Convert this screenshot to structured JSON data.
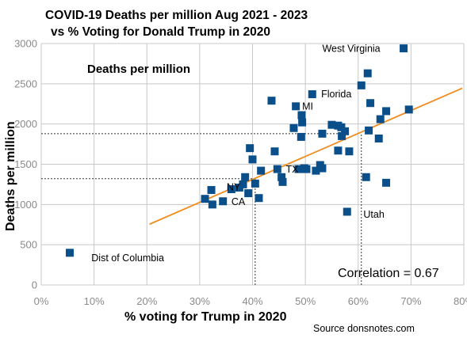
{
  "chart_data": {
    "type": "scatter",
    "title_line1": "COVID-19 Deaths per million Aug 2021 - 2023",
    "title_line2": "vs % Voting for Donald Trump in 2020",
    "inner_label": "Deaths per million",
    "xlabel": "% voting for Trump in 2020",
    "ylabel": "Deaths per million",
    "xlim": [
      0,
      80
    ],
    "ylim": [
      0,
      3000
    ],
    "x_ticks": [
      0,
      10,
      20,
      30,
      40,
      50,
      60,
      70,
      80
    ],
    "x_tick_labels": [
      "0%",
      "10%",
      "20%",
      "30%",
      "40%",
      "50%",
      "60%",
      "70%",
      "80%"
    ],
    "y_ticks": [
      0,
      500,
      1000,
      1500,
      2000,
      2500,
      3000
    ],
    "y_tick_labels": [
      "0",
      "500",
      "1000",
      "1500",
      "2000",
      "2500",
      "3000"
    ],
    "grid": true,
    "marker_color": "#0b4f8a",
    "trend_color": "#f08c1e",
    "trendline": {
      "x": [
        20.5,
        79.7
      ],
      "y": [
        755,
        2445
      ]
    },
    "points": [
      {
        "x": 5.4,
        "y": 400
      },
      {
        "x": 31.0,
        "y": 1070
      },
      {
        "x": 32.2,
        "y": 1180
      },
      {
        "x": 32.4,
        "y": 1000
      },
      {
        "x": 34.4,
        "y": 1040
      },
      {
        "x": 36.0,
        "y": 1190
      },
      {
        "x": 37.5,
        "y": 1210
      },
      {
        "x": 38.2,
        "y": 1250
      },
      {
        "x": 38.6,
        "y": 1340
      },
      {
        "x": 39.2,
        "y": 1140
      },
      {
        "x": 39.5,
        "y": 1700
      },
      {
        "x": 40.0,
        "y": 1560
      },
      {
        "x": 40.5,
        "y": 1260
      },
      {
        "x": 41.2,
        "y": 1080
      },
      {
        "x": 41.6,
        "y": 1420
      },
      {
        "x": 43.6,
        "y": 2290
      },
      {
        "x": 44.2,
        "y": 1660
      },
      {
        "x": 44.7,
        "y": 1440
      },
      {
        "x": 45.5,
        "y": 1340
      },
      {
        "x": 45.7,
        "y": 1280
      },
      {
        "x": 47.8,
        "y": 1950
      },
      {
        "x": 48.2,
        "y": 2220
      },
      {
        "x": 48.7,
        "y": 1440
      },
      {
        "x": 49.2,
        "y": 1840
      },
      {
        "x": 49.3,
        "y": 2110
      },
      {
        "x": 49.4,
        "y": 2020
      },
      {
        "x": 49.8,
        "y": 1450
      },
      {
        "x": 50.2,
        "y": 1440
      },
      {
        "x": 51.3,
        "y": 2370
      },
      {
        "x": 52.0,
        "y": 1420
      },
      {
        "x": 52.8,
        "y": 1490
      },
      {
        "x": 53.2,
        "y": 1450
      },
      {
        "x": 53.2,
        "y": 1880
      },
      {
        "x": 55.0,
        "y": 1990
      },
      {
        "x": 56.2,
        "y": 1980
      },
      {
        "x": 56.2,
        "y": 1670
      },
      {
        "x": 56.8,
        "y": 1960
      },
      {
        "x": 56.9,
        "y": 1850
      },
      {
        "x": 57.5,
        "y": 1910
      },
      {
        "x": 57.9,
        "y": 910
      },
      {
        "x": 58.3,
        "y": 1660
      },
      {
        "x": 60.6,
        "y": 2480
      },
      {
        "x": 61.5,
        "y": 1340
      },
      {
        "x": 61.8,
        "y": 2630
      },
      {
        "x": 62.0,
        "y": 1920
      },
      {
        "x": 62.3,
        "y": 2260
      },
      {
        "x": 63.9,
        "y": 1820
      },
      {
        "x": 64.2,
        "y": 2060
      },
      {
        "x": 65.3,
        "y": 2160
      },
      {
        "x": 65.3,
        "y": 1270
      },
      {
        "x": 68.6,
        "y": 2940
      },
      {
        "x": 69.6,
        "y": 2180
      }
    ],
    "annotations": [
      {
        "text": "West Virginia",
        "x": 53.2,
        "y": 2940
      },
      {
        "text": "Florida",
        "x": 53.0,
        "y": 2375
      },
      {
        "text": "MI",
        "x": 49.4,
        "y": 2225
      },
      {
        "text": "TX",
        "x": 46.3,
        "y": 1440
      },
      {
        "text": "NY",
        "x": 35.1,
        "y": 1220
      },
      {
        "text": "CA",
        "x": 36.0,
        "y": 1040
      },
      {
        "text": "Utah",
        "x": 61.0,
        "y": 880
      },
      {
        "text": "Dist of Columbia",
        "x": 9.5,
        "y": 340
      }
    ],
    "reference_lines": [
      {
        "dir": "h",
        "y": 1880,
        "x_from": 0,
        "x_to": 57.5
      },
      {
        "dir": "h",
        "y": 1320,
        "x_from": 0,
        "x_to": 40.5
      },
      {
        "dir": "v",
        "x": 40.5,
        "y_from": 0,
        "y_to": 1320
      },
      {
        "dir": "v",
        "x": 60.6,
        "y_from": 0,
        "y_to": 1880
      }
    ],
    "correlation_text": "Correlation = 0.67",
    "source_text": "Source donsnotes.com"
  }
}
